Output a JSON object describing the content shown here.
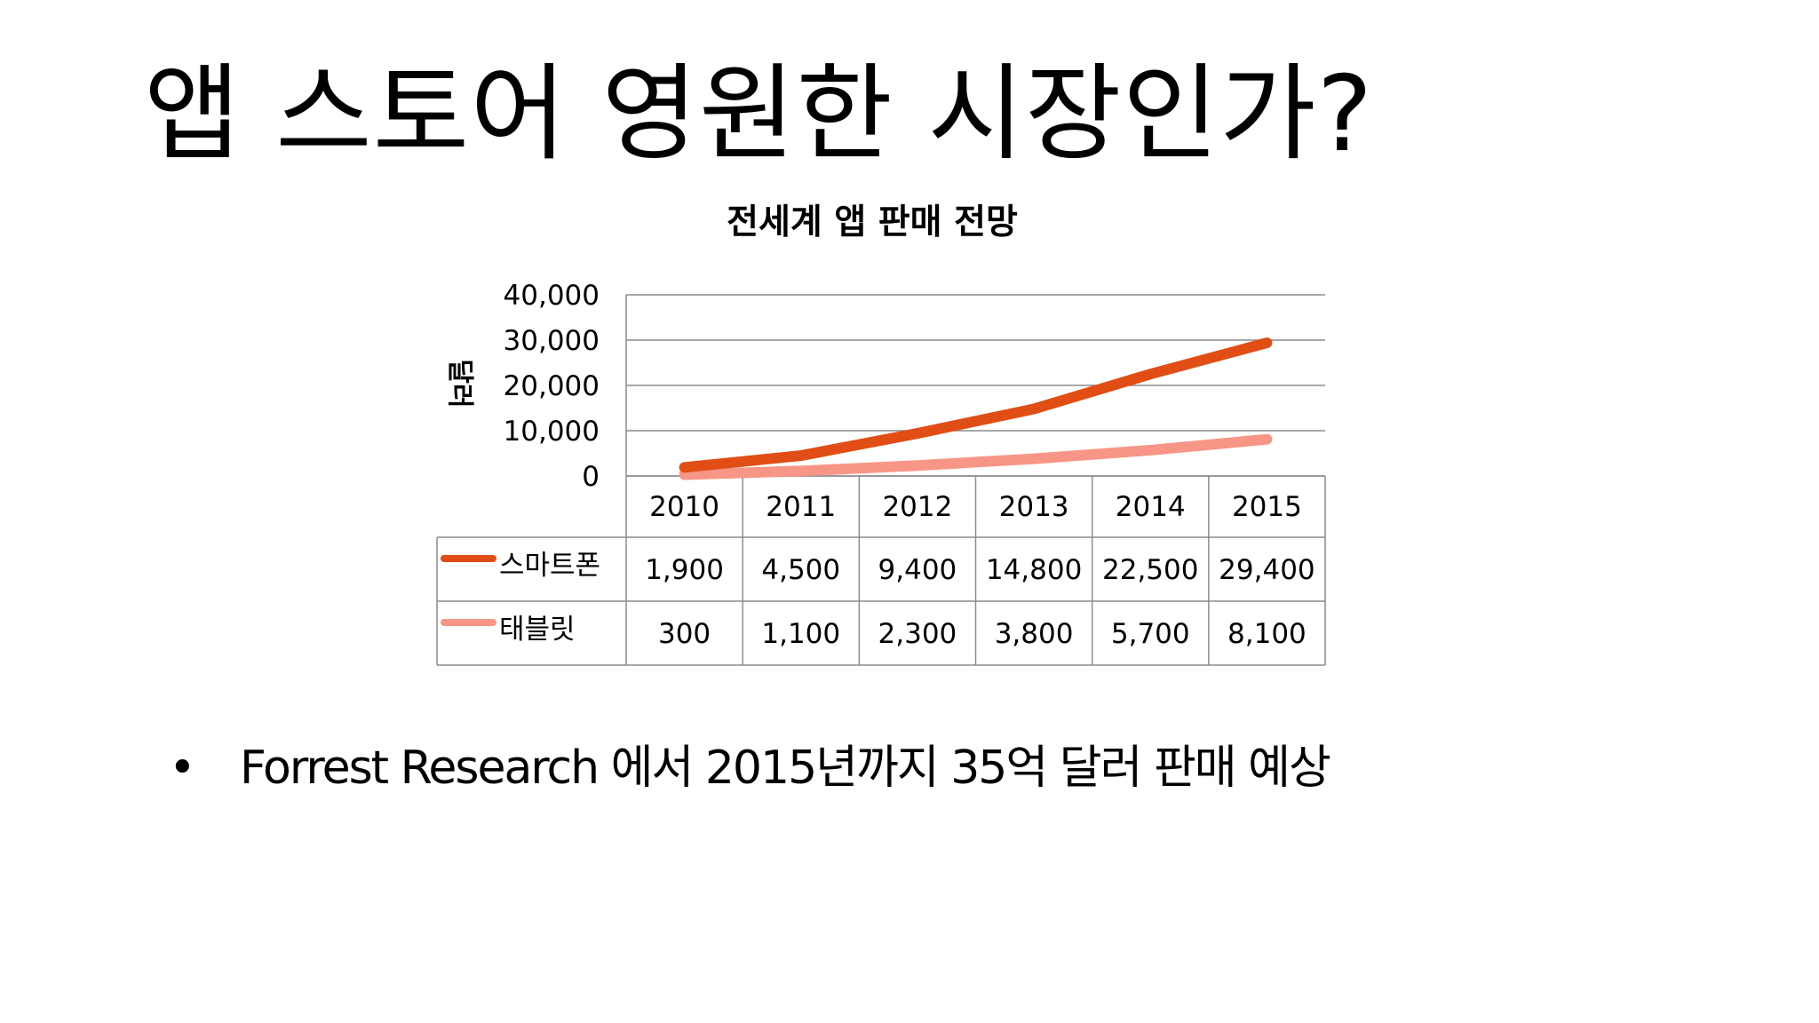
{
  "slide": {
    "title": "앱 스토어 영원한 시장인가?",
    "bullet": "Forrest Research 에서 2015년까지 35억 달러 판매 예상",
    "bullet_marker": "•"
  },
  "chart_data": {
    "type": "line",
    "title": "전세계 앱 판매 전망",
    "ylabel": "달러",
    "xlabel": "",
    "ylim": [
      0,
      40000
    ],
    "yticks": [
      "40,000",
      "30,000",
      "20,000",
      "10,000",
      "0"
    ],
    "yticks_values": [
      40000,
      30000,
      20000,
      10000,
      0
    ],
    "categories": [
      "2010",
      "2011",
      "2012",
      "2013",
      "2014",
      "2015"
    ],
    "grid": true,
    "legend": "data-table",
    "series": [
      {
        "name": "스마트폰",
        "color": "#e04e16",
        "values": [
          1900,
          4500,
          9400,
          14800,
          22500,
          29400
        ],
        "labels": [
          "1,900",
          "4,500",
          "9,400",
          "14,800",
          "22,500",
          "29,400"
        ]
      },
      {
        "name": "태블릿",
        "color": "#f79686",
        "values": [
          300,
          1100,
          2300,
          3800,
          5700,
          8100
        ],
        "labels": [
          "300",
          "1,100",
          "2,300",
          "3,800",
          "5,700",
          "8,100"
        ]
      }
    ]
  }
}
